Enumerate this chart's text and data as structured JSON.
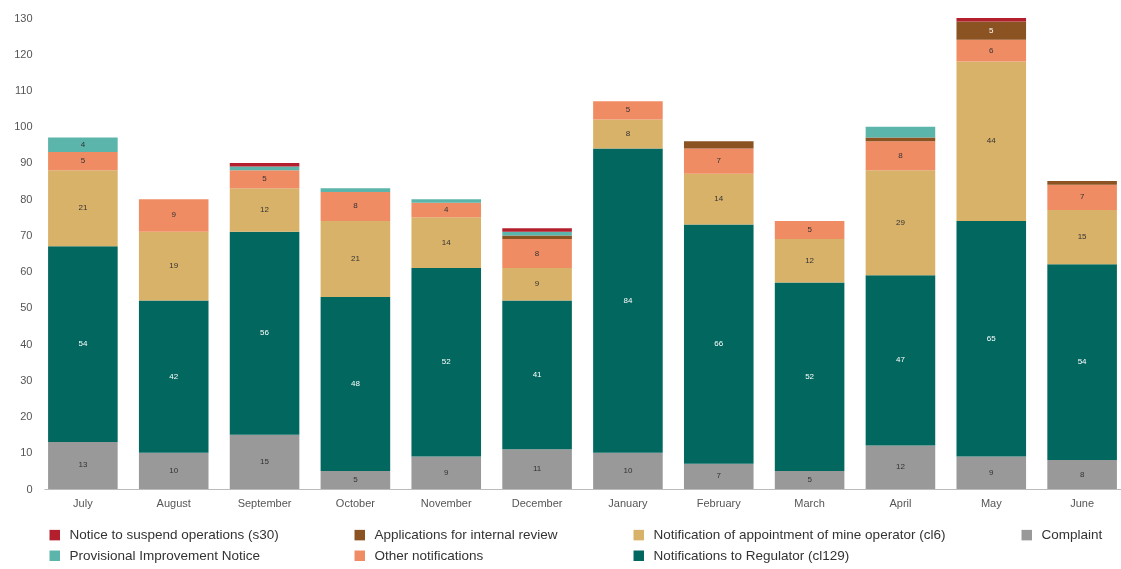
{
  "chart_data": {
    "type": "bar",
    "stacked": true,
    "grid": false,
    "legend": "bottom",
    "categories": [
      "July",
      "August",
      "September",
      "October",
      "November",
      "December",
      "January",
      "February",
      "March",
      "April",
      "May",
      "June"
    ],
    "ylim": [
      0,
      130
    ],
    "yticks": [
      0,
      10,
      20,
      30,
      40,
      50,
      60,
      70,
      80,
      90,
      100,
      110,
      120,
      130
    ],
    "series": [
      {
        "name": "Complaint",
        "color": "#999999",
        "values": [
          13,
          10,
          15,
          5,
          9,
          11,
          10,
          7,
          5,
          12,
          9,
          8
        ],
        "value_labels": [
          "13",
          "10",
          "15",
          "5",
          "9",
          "11",
          "10",
          "7",
          "5",
          "12",
          "9",
          "8"
        ]
      },
      {
        "name": "Notifications to Regulator (cl129)",
        "color": "#02675f",
        "values": [
          54,
          42,
          56,
          48,
          52,
          41,
          84,
          66,
          52,
          47,
          65,
          54
        ],
        "value_labels": [
          "54",
          "42",
          "56",
          "48",
          "52",
          "41",
          "84",
          "66",
          "52",
          "47",
          "65",
          "54"
        ]
      },
      {
        "name": "Notification of appointment of mine operator (cl6)",
        "color": "#d9b26a",
        "values": [
          21,
          19,
          12,
          21,
          14,
          9,
          8,
          14,
          12,
          29,
          44,
          15
        ],
        "value_labels": [
          "21",
          "19",
          "12",
          "21",
          "14",
          "9",
          "8",
          "14",
          "12",
          "29",
          "44",
          "15"
        ]
      },
      {
        "name": "Other notifications",
        "color": "#f08c63",
        "values": [
          5,
          9,
          5,
          8,
          4,
          8,
          5,
          7,
          5,
          8,
          6,
          7
        ],
        "value_labels": [
          "5",
          "9",
          "5",
          "8",
          "4",
          "8",
          "5",
          "7",
          "5",
          "8",
          "6",
          "7"
        ]
      },
      {
        "name": "Applications for internal review",
        "color": "#8b5222",
        "values": [
          null,
          null,
          null,
          null,
          null,
          1,
          null,
          2,
          null,
          1,
          5,
          1
        ],
        "value_labels": [
          null,
          null,
          null,
          null,
          null,
          null,
          null,
          null,
          null,
          null,
          "5",
          null
        ]
      },
      {
        "name": "Provisional Improvement Notice",
        "color": "#5bb5ab",
        "values": [
          4,
          null,
          1,
          1,
          1,
          1,
          null,
          null,
          null,
          3,
          null,
          null
        ],
        "value_labels": [
          "4",
          null,
          null,
          null,
          null,
          null,
          null,
          null,
          null,
          null,
          null,
          null
        ]
      },
      {
        "name": "Notice to suspend operations (s30)",
        "color": "#b41f2e",
        "values": [
          null,
          null,
          1,
          null,
          null,
          1,
          null,
          null,
          null,
          null,
          1,
          null
        ],
        "value_labels": [
          null,
          null,
          null,
          null,
          null,
          null,
          null,
          null,
          null,
          null,
          null,
          null
        ]
      }
    ]
  }
}
